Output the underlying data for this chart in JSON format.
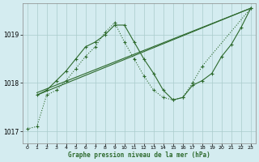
{
  "title": "Graphe pression niveau de la mer (hPa)",
  "bg_color": "#d4ecf0",
  "grid_color": "#aacccc",
  "line_color": "#2d6a2d",
  "ylim": [
    1016.75,
    1019.65
  ],
  "yticks": [
    1017,
    1018,
    1019
  ],
  "xlim": [
    -0.5,
    23.5
  ],
  "xticks": [
    0,
    1,
    2,
    3,
    4,
    5,
    6,
    7,
    8,
    9,
    10,
    11,
    12,
    13,
    14,
    15,
    16,
    17,
    18,
    19,
    20,
    21,
    22,
    23
  ],
  "series": [
    {
      "x": [
        1,
        23
      ],
      "y": [
        1017.75,
        1019.55
      ],
      "style": "solid",
      "marker": null,
      "lw": 0.8
    },
    {
      "x": [
        1,
        23
      ],
      "y": [
        1017.8,
        1019.55
      ],
      "style": "solid",
      "marker": null,
      "lw": 0.8
    },
    {
      "x": [
        1,
        2,
        3,
        4,
        5,
        6,
        7,
        8,
        9,
        10,
        11,
        12,
        13,
        14,
        15,
        16,
        17,
        18,
        19,
        20,
        21,
        22,
        23
      ],
      "y": [
        1017.75,
        1017.85,
        1018.05,
        1018.25,
        1018.5,
        1018.75,
        1018.85,
        1019.0,
        1019.2,
        1019.2,
        1018.85,
        1018.5,
        1018.2,
        1017.85,
        1017.65,
        1017.7,
        1017.95,
        1018.05,
        1018.2,
        1018.55,
        1018.8,
        1019.15,
        1019.55
      ],
      "style": "solid",
      "marker": "+",
      "lw": 0.8
    },
    {
      "x": [
        0,
        1,
        2,
        3,
        4,
        5,
        6,
        7,
        8,
        9,
        10,
        11,
        12,
        13,
        14,
        15,
        16,
        17,
        18,
        23
      ],
      "y": [
        1017.05,
        1017.1,
        1017.75,
        1017.85,
        1018.05,
        1018.3,
        1018.55,
        1018.75,
        1019.05,
        1019.25,
        1018.85,
        1018.5,
        1018.15,
        1017.85,
        1017.7,
        1017.65,
        1017.7,
        1018.0,
        1018.35,
        1019.55
      ],
      "style": "dotted",
      "marker": "+",
      "lw": 0.8
    }
  ]
}
